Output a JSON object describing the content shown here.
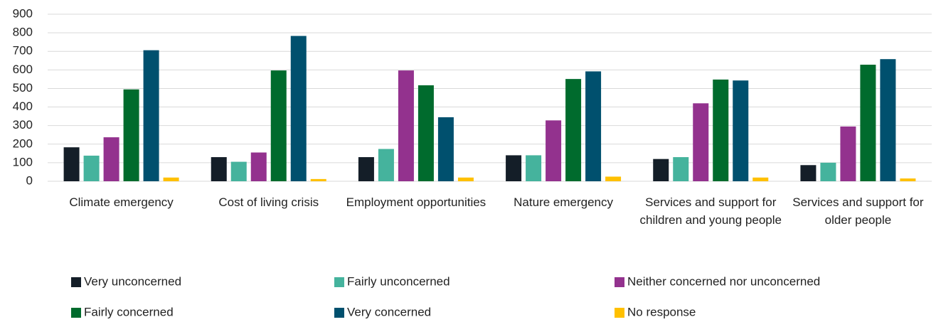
{
  "chart_data": {
    "type": "bar",
    "categories": [
      "Climate emergency",
      "Cost of living crisis",
      "Employment opportunities",
      "Nature emergency",
      "Services and support for children and young people",
      "Services and support for older people"
    ],
    "series": [
      {
        "name": "Very unconcerned",
        "color": "#141e28",
        "values": [
          183,
          130,
          130,
          140,
          120,
          87
        ]
      },
      {
        "name": "Fairly unconcerned",
        "color": "#45b39d",
        "values": [
          138,
          105,
          174,
          140,
          130,
          100
        ]
      },
      {
        "name": "Neither concerned nor unconcerned",
        "color": "#93328e",
        "values": [
          237,
          155,
          597,
          328,
          420,
          295
        ]
      },
      {
        "name": "Fairly concerned",
        "color": "#006b2d",
        "values": [
          495,
          597,
          517,
          551,
          548,
          628
        ]
      },
      {
        "name": "Very concerned",
        "color": "#00506e",
        "values": [
          706,
          783,
          345,
          592,
          543,
          658
        ]
      },
      {
        "name": "No response",
        "color": "#ffc000",
        "values": [
          20,
          12,
          20,
          25,
          20,
          15
        ]
      }
    ],
    "ylim": [
      0,
      900
    ],
    "yticks": [
      0,
      100,
      200,
      300,
      400,
      500,
      600,
      700,
      800,
      900
    ],
    "grid": true
  }
}
